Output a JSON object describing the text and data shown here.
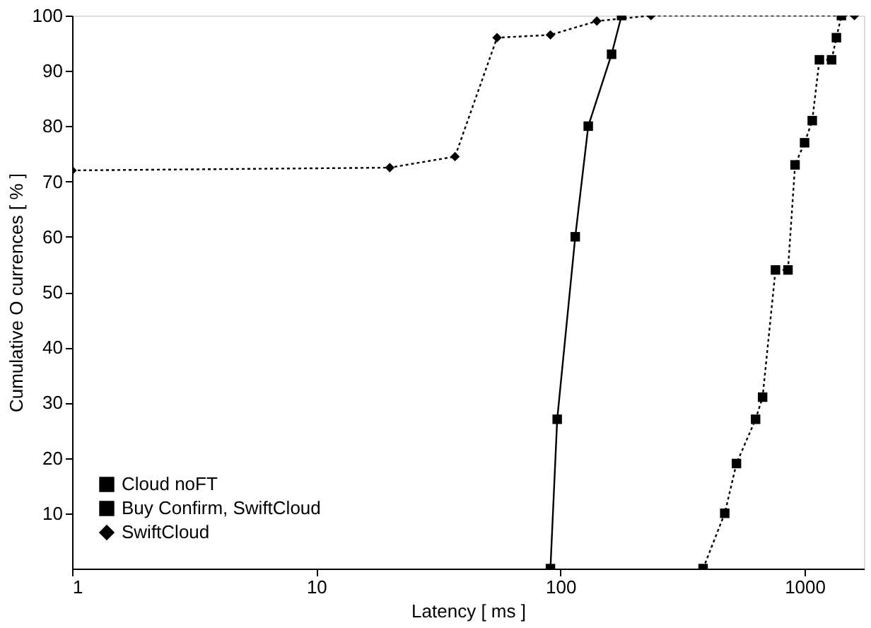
{
  "chart_data": {
    "type": "line",
    "xlabel": "Latency [ ms ]",
    "ylabel": "Cumulative O currences [ % ]",
    "log": "x",
    "xlim": [
      1,
      1750
    ],
    "xticks": [
      1,
      10,
      100,
      1000
    ],
    "ylim": [
      0,
      100
    ],
    "yticks": [
      10,
      20,
      30,
      40,
      50,
      60,
      70,
      80,
      90,
      100
    ],
    "grid": false,
    "legend": "bottom left",
    "series": [
      {
        "name": "Cloud noFT",
        "color": "#000000",
        "marker": "square",
        "line_style": "solid",
        "x": [
          91,
          97,
          115,
          130,
          162,
          178
        ],
        "values": [
          0,
          27,
          60,
          80,
          93,
          100
        ]
      },
      {
        "name": "Buy Confirm, SwiftCloud",
        "color": "#000000",
        "marker": "square",
        "line_style": "dotted",
        "x": [
          384,
          471,
          526,
          630,
          673,
          760,
          855,
          914,
          1000,
          1075,
          1150,
          1290,
          1350,
          1415
        ],
        "values": [
          0,
          10,
          19,
          27,
          31,
          54,
          54,
          73,
          77,
          81,
          92,
          92,
          96,
          100
        ]
      },
      {
        "name": "SwiftCloud",
        "color": "#000000",
        "marker": "diamond",
        "line_style": "dotted",
        "x": [
          1,
          20,
          37,
          55,
          91,
          141,
          235,
          1600
        ],
        "values": [
          72,
          72.5,
          74.5,
          96,
          96.5,
          99,
          100,
          100
        ]
      }
    ]
  }
}
